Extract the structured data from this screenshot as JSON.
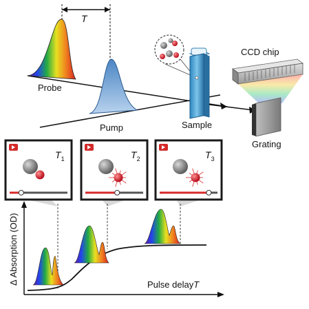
{
  "diagram": {
    "labels": {
      "delay_symbol": "T",
      "probe": "Probe",
      "pump": "Pump",
      "sample": "Sample",
      "ccd": "CCD chip",
      "grating": "Grating",
      "y_axis": "Δ Absorption (OD)",
      "x_axis": "Pulse delay",
      "x_axis_symbol": "T"
    },
    "frames": [
      {
        "label": "T",
        "sub": "1",
        "progress": 0.2
      },
      {
        "label": "T",
        "sub": "2",
        "progress": 0.55
      },
      {
        "label": "T",
        "sub": "3",
        "progress": 0.85
      }
    ],
    "colors": {
      "frame_border": "#1a1a1a",
      "play_red": "#d42a2a",
      "pump_blue": "#3a78b5",
      "cuvette": "#4ea3d6",
      "curve": "#111111"
    }
  }
}
